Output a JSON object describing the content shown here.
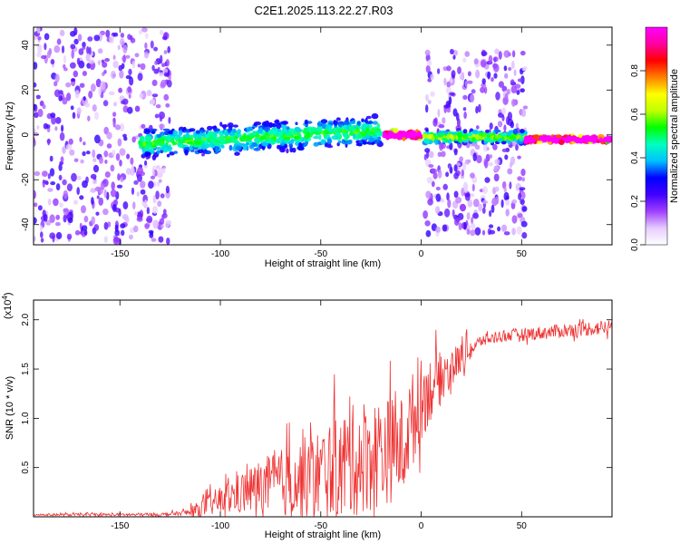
{
  "title": "C2E1.2025.113.22.27.R03",
  "chart_data": [
    {
      "type": "heatmap",
      "xlabel": "Height of straight line (km)",
      "ylabel": "Frequency (Hz)",
      "xlim": [
        -193,
        95
      ],
      "ylim": [
        -49,
        48
      ],
      "x_ticks": [
        -150,
        -100,
        -50,
        0,
        50
      ],
      "y_ticks": [
        -40,
        -20,
        0,
        20,
        40
      ],
      "colorbar": {
        "label": "Normalized spectral amplitude",
        "range": [
          0,
          1
        ],
        "ticks": [
          0.0,
          0.2,
          0.4,
          0.6,
          0.8
        ],
        "colors": [
          "#ffffff",
          "#e6ccff",
          "#a040ff",
          "#4000ff",
          "#0000ff",
          "#00c0ff",
          "#00ffc0",
          "#00ff00",
          "#c0ff00",
          "#ffff00",
          "#ff8000",
          "#ff0000",
          "#ff00a0",
          "#ff00ff"
        ]
      },
      "regions": [
        {
          "x": [
            -193,
            -125
          ],
          "freq_spread": [
            -48,
            48
          ],
          "amplitude": 0.12,
          "desc_key": "noise"
        },
        {
          "x": [
            -140,
            -20
          ],
          "freq_center_start": -4,
          "freq_center_end": 2,
          "band_halfwidth": 7,
          "amplitude": 0.35
        },
        {
          "x": [
            -18,
            0
          ],
          "freq_center": 0,
          "band_halfwidth": 2,
          "amplitude": 0.9
        },
        {
          "x": [
            2,
            52
          ],
          "freq_spread": [
            -45,
            38
          ],
          "amplitude": 0.12
        },
        {
          "x": [
            2,
            52
          ],
          "freq_center": -1,
          "band_halfwidth": 3,
          "amplitude": 0.4
        },
        {
          "x": [
            52,
            95
          ],
          "freq_center": -2,
          "band_halfwidth": 1.5,
          "amplitude": 0.95
        }
      ]
    },
    {
      "type": "line",
      "xlabel": "Height of straight line (km)",
      "ylabel": "SNR (10 * v/v)",
      "scale_label": "(x10",
      "scale_exp": "4",
      "scale_close": ")",
      "xlim": [
        -193,
        95
      ],
      "ylim": [
        0,
        2.2
      ],
      "x_ticks": [
        -150,
        -100,
        -50,
        0,
        50
      ],
      "y_ticks": [
        0.5,
        1.0,
        1.5,
        2.0
      ],
      "y_tick_labels": [
        "0.5",
        "1.0",
        "1.5",
        "2.0"
      ],
      "color": "#ee3333",
      "series": [
        {
          "trend_x": [
            -193,
            -130,
            -115,
            -100,
            -80,
            -60,
            -40,
            -30,
            -20,
            -10,
            -5,
            0,
            10,
            20,
            30,
            40,
            60,
            80,
            95
          ],
          "trend_y": [
            0.02,
            0.02,
            0.04,
            0.15,
            0.28,
            0.34,
            0.45,
            0.55,
            0.6,
            0.65,
            0.9,
            1.15,
            1.4,
            1.6,
            1.78,
            1.83,
            1.86,
            1.9,
            1.92
          ],
          "noise_amp_x": [
            -193,
            -120,
            -100,
            -30,
            -5,
            10,
            30,
            95
          ],
          "noise_amp_y": [
            0.01,
            0.02,
            0.15,
            0.6,
            0.5,
            0.25,
            0.06,
            0.08
          ]
        }
      ]
    }
  ]
}
